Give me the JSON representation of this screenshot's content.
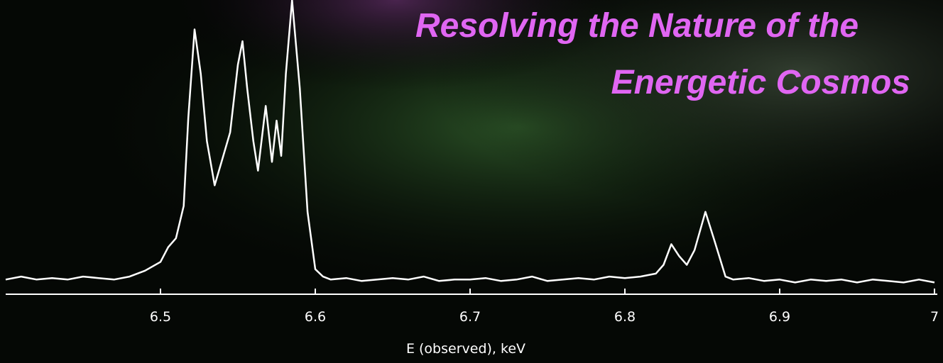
{
  "chart_data": {
    "type": "line",
    "title_lines": [
      "Resolving the Nature of the",
      "Energetic Cosmos"
    ],
    "x_label": "E (observed), keV",
    "xlim": [
      6.4,
      7.0
    ],
    "xticks": [
      6.5,
      6.6,
      6.7,
      6.8,
      6.9,
      7
    ],
    "ylim": [
      0,
      10
    ],
    "color": "#ffffff",
    "x": [
      6.4,
      6.41,
      6.42,
      6.43,
      6.44,
      6.45,
      6.46,
      6.47,
      6.48,
      6.49,
      6.5,
      6.505,
      6.51,
      6.515,
      6.518,
      6.522,
      6.526,
      6.53,
      6.535,
      6.54,
      6.545,
      6.55,
      6.553,
      6.556,
      6.56,
      6.563,
      6.568,
      6.572,
      6.575,
      6.578,
      6.581,
      6.585,
      6.59,
      6.595,
      6.6,
      6.605,
      6.61,
      6.62,
      6.63,
      6.64,
      6.65,
      6.66,
      6.67,
      6.68,
      6.69,
      6.7,
      6.71,
      6.72,
      6.73,
      6.74,
      6.75,
      6.76,
      6.77,
      6.78,
      6.79,
      6.8,
      6.81,
      6.82,
      6.825,
      6.83,
      6.835,
      6.84,
      6.845,
      6.852,
      6.858,
      6.865,
      6.87,
      6.88,
      6.89,
      6.9,
      6.91,
      6.92,
      6.93,
      6.94,
      6.95,
      6.96,
      6.97,
      6.98,
      6.99,
      7.0
    ],
    "values": [
      0.5,
      0.6,
      0.5,
      0.55,
      0.5,
      0.6,
      0.55,
      0.5,
      0.6,
      0.8,
      1.1,
      1.6,
      1.9,
      3.0,
      6.0,
      9.0,
      7.5,
      5.2,
      3.7,
      4.6,
      5.5,
      7.8,
      8.6,
      7.0,
      5.2,
      4.2,
      6.4,
      4.5,
      5.9,
      4.7,
      7.5,
      10.0,
      7.0,
      2.8,
      0.85,
      0.6,
      0.5,
      0.55,
      0.45,
      0.5,
      0.55,
      0.5,
      0.6,
      0.45,
      0.5,
      0.5,
      0.55,
      0.45,
      0.5,
      0.6,
      0.45,
      0.5,
      0.55,
      0.5,
      0.6,
      0.55,
      0.6,
      0.7,
      1.0,
      1.7,
      1.3,
      1.0,
      1.5,
      2.8,
      1.8,
      0.6,
      0.5,
      0.55,
      0.45,
      0.5,
      0.4,
      0.5,
      0.45,
      0.5,
      0.4,
      0.5,
      0.45,
      0.4,
      0.5,
      0.4
    ]
  }
}
